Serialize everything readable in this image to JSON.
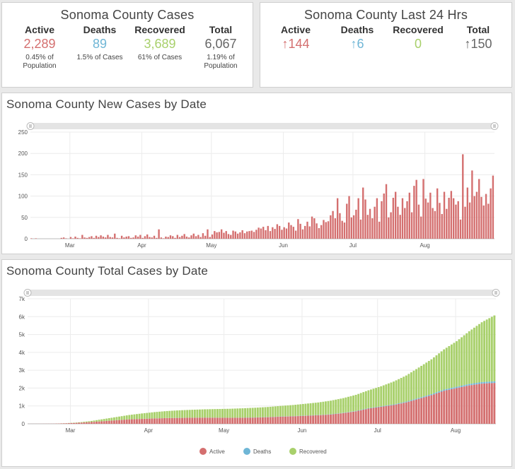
{
  "cases_panel": {
    "title": "Sonoma County Cases",
    "active": {
      "label": "Active",
      "value": "2,289",
      "sub1": "0.45% of",
      "sub2": "Population"
    },
    "deaths": {
      "label": "Deaths",
      "value": "89",
      "sub1": "1.5% of Cases"
    },
    "recovered": {
      "label": "Recovered",
      "value": "3,689",
      "sub1": "61% of Cases"
    },
    "total": {
      "label": "Total",
      "value": "6,067",
      "sub1": "1.19% of",
      "sub2": "Population"
    }
  },
  "last24_panel": {
    "title": "Sonoma County Last 24 Hrs",
    "active": {
      "label": "Active",
      "value": "↑144"
    },
    "deaths": {
      "label": "Deaths",
      "value": "↑6"
    },
    "recovered": {
      "label": "Recovered",
      "value": "0"
    },
    "total": {
      "label": "Total",
      "value": "↑150"
    }
  },
  "colors": {
    "active": "#d46f6f",
    "deaths": "#6fb6d6",
    "recovered": "#a8d06b",
    "total": "#666666"
  },
  "chart_data": [
    {
      "type": "bar",
      "title": "Sonoma County New Cases by Date",
      "xlabel": "",
      "ylabel": "",
      "ylim": [
        0,
        250
      ],
      "yticks": [
        0,
        50,
        100,
        150,
        200,
        250
      ],
      "ytick_labels": [
        "0",
        "50",
        "100",
        "150",
        "200",
        "250"
      ],
      "month_ticks": [
        {
          "label": "Mar",
          "day": 17
        },
        {
          "label": "Apr",
          "day": 48
        },
        {
          "label": "May",
          "day": 78
        },
        {
          "label": "Jun",
          "day": 109
        },
        {
          "label": "Jul",
          "day": 139
        },
        {
          "label": "Aug",
          "day": 170
        }
      ],
      "grid": true,
      "values": [
        1,
        0,
        1,
        0,
        0,
        0,
        0,
        0,
        0,
        0,
        0,
        0,
        0,
        2,
        3,
        1,
        0,
        4,
        1,
        5,
        2,
        1,
        9,
        3,
        2,
        4,
        6,
        2,
        7,
        4,
        8,
        5,
        3,
        9,
        4,
        3,
        12,
        2,
        1,
        7,
        3,
        5,
        6,
        2,
        3,
        8,
        5,
        9,
        2,
        6,
        10,
        4,
        3,
        7,
        2,
        22,
        3,
        1,
        5,
        4,
        8,
        6,
        2,
        9,
        4,
        7,
        11,
        5,
        3,
        8,
        12,
        6,
        9,
        4,
        13,
        7,
        22,
        4,
        10,
        18,
        15,
        16,
        22,
        14,
        18,
        11,
        9,
        19,
        17,
        12,
        15,
        20,
        13,
        17,
        18,
        19,
        16,
        21,
        26,
        24,
        28,
        20,
        30,
        18,
        27,
        23,
        34,
        30,
        21,
        27,
        24,
        38,
        32,
        28,
        19,
        46,
        35,
        22,
        30,
        40,
        29,
        52,
        48,
        36,
        25,
        32,
        44,
        39,
        41,
        55,
        65,
        48,
        95,
        60,
        42,
        38,
        82,
        100,
        50,
        55,
        68,
        95,
        45,
        120,
        92,
        56,
        70,
        48,
        75,
        95,
        40,
        88,
        106,
        128,
        50,
        62,
        96,
        110,
        75,
        56,
        95,
        72,
        88,
        108,
        62,
        124,
        138,
        80,
        52,
        140,
        94,
        85,
        108,
        72,
        65,
        118,
        84,
        58,
        110,
        70,
        96,
        112,
        95,
        80,
        88,
        45,
        198,
        75,
        120,
        85,
        160,
        100,
        110,
        140,
        98,
        78,
        105,
        82,
        118,
        148
      ]
    },
    {
      "type": "bar",
      "stacked": true,
      "title": "Sonoma County Total Cases by Date",
      "xlabel": "",
      "ylabel": "",
      "ylim": [
        0,
        7000
      ],
      "yticks": [
        0,
        1000,
        2000,
        3000,
        4000,
        5000,
        6000,
        7000
      ],
      "ytick_labels": [
        "0",
        "1k",
        "2k",
        "3k",
        "4k",
        "5k",
        "6k",
        "7k"
      ],
      "month_ticks": [
        {
          "label": "Mar",
          "day": 17
        },
        {
          "label": "Apr",
          "day": 48
        },
        {
          "label": "May",
          "day": 78
        },
        {
          "label": "Jun",
          "day": 109
        },
        {
          "label": "Jul",
          "day": 139
        },
        {
          "label": "Aug",
          "day": 170
        }
      ],
      "grid": true,
      "legend_position": "bottom",
      "series": [
        {
          "name": "Active",
          "color": "#d46f6f",
          "key": "active"
        },
        {
          "name": "Deaths",
          "color": "#6fb6d6",
          "key": "deaths"
        },
        {
          "name": "Recovered",
          "color": "#a8d06b",
          "key": "recovered"
        }
      ],
      "days": 186,
      "sampled_every": 6,
      "active": [
        2,
        4,
        8,
        30,
        60,
        100,
        150,
        200,
        250,
        275,
        300,
        320,
        330,
        340,
        345,
        340,
        335,
        340,
        350,
        370,
        400,
        420,
        450,
        480,
        520,
        600,
        700,
        850,
        950,
        1050,
        1200,
        1400,
        1600,
        1850,
        2000,
        2150,
        2250,
        2289
      ],
      "deaths": [
        0,
        0,
        0,
        0,
        0,
        1,
        2,
        3,
        4,
        4,
        5,
        5,
        6,
        6,
        6,
        7,
        7,
        8,
        9,
        10,
        11,
        12,
        13,
        14,
        16,
        18,
        22,
        26,
        30,
        36,
        44,
        52,
        60,
        68,
        74,
        80,
        86,
        89
      ],
      "recovered": [
        0,
        0,
        0,
        5,
        20,
        60,
        120,
        180,
        240,
        300,
        350,
        390,
        420,
        440,
        460,
        480,
        500,
        520,
        540,
        560,
        590,
        620,
        660,
        700,
        760,
        820,
        900,
        1000,
        1120,
        1280,
        1460,
        1700,
        1950,
        2250,
        2550,
        2950,
        3350,
        3689
      ]
    }
  ]
}
